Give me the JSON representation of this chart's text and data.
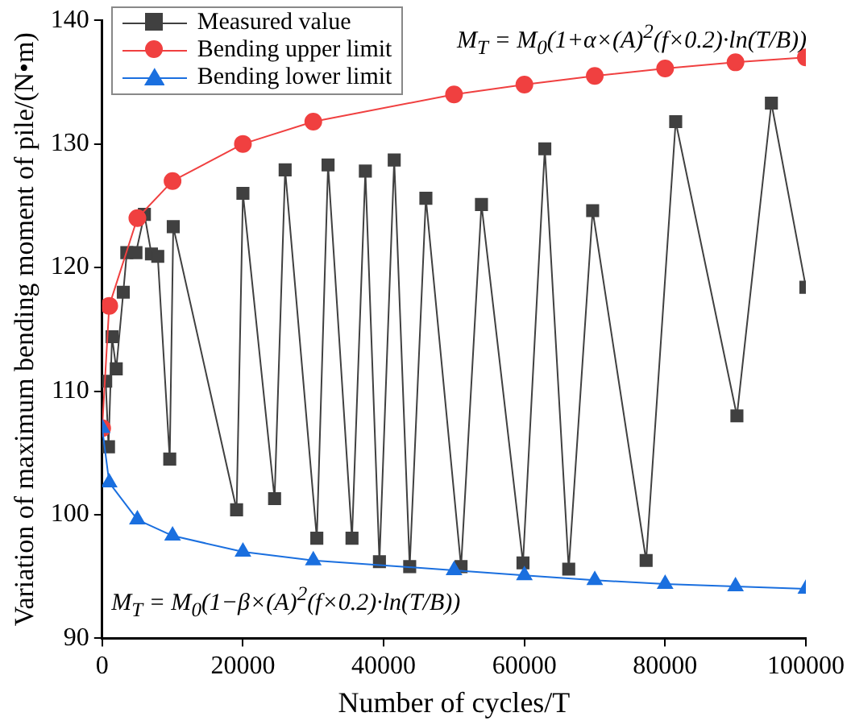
{
  "chart_data": {
    "type": "line",
    "xlabel": "Number of cycles/T",
    "ylabel": "Variation of maximum bending moment of pile/(N•m)",
    "xlim": [
      0,
      100000
    ],
    "xticks": [
      0,
      20000,
      40000,
      60000,
      80000,
      100000
    ],
    "ylim": [
      90,
      140
    ],
    "yticks": [
      90,
      100,
      110,
      120,
      130,
      140
    ],
    "grid": false,
    "legend": "top left",
    "line_style": "solid",
    "annotations": [
      "M$_{T}$ = M$_{0}$(1+α×(A)$^{2}$(f×0.2)·ln(T/B))",
      "M$_{T}$ = M$_{0}$(1−β×(A)$^{2}$(f×0.2)·ln(T/B))"
    ],
    "series": [
      {
        "name": "Measured value",
        "color": "#404040",
        "marker": "square",
        "x": [
          500,
          900,
          1400,
          2000,
          3000,
          3500,
          4800,
          6000,
          7000,
          7900,
          9600,
          10100,
          19100,
          20000,
          24500,
          26000,
          30500,
          32100,
          35500,
          37400,
          39400,
          41500,
          43700,
          46000,
          51000,
          53900,
          59800,
          62900,
          66300,
          69700,
          77300,
          81500,
          90200,
          95100,
          100000
        ],
        "values": [
          110.8,
          105.5,
          114.4,
          111.8,
          118,
          121.2,
          121.2,
          124.3,
          121.1,
          120.9,
          104.5,
          123.3,
          100.4,
          126,
          101.3,
          127.9,
          98.1,
          128.3,
          98.1,
          127.8,
          96.2,
          128.7,
          95.8,
          125.6,
          95.8,
          125.1,
          96.1,
          129.6,
          95.6,
          124.6,
          96.3,
          131.8,
          108,
          133.3,
          118.4
        ]
      },
      {
        "name": "Bending upper limit",
        "color": "#f04040",
        "marker": "circle",
        "x": [
          0,
          1000,
          5000,
          10000,
          20000,
          30000,
          50000,
          60000,
          70000,
          80000,
          90000,
          100000
        ],
        "values": [
          107,
          116.9,
          124,
          127,
          130,
          131.8,
          134,
          134.8,
          135.5,
          136.1,
          136.6,
          137
        ]
      },
      {
        "name": "Bending lower limit",
        "color": "#1a6fdf",
        "marker": "triangle",
        "x": [
          0,
          1000,
          5000,
          10000,
          20000,
          30000,
          50000,
          60000,
          70000,
          80000,
          90000,
          100000
        ],
        "values": [
          107,
          102.6,
          99.6,
          98.3,
          97,
          96.3,
          95.5,
          95.1,
          94.7,
          94.4,
          94.2,
          94
        ]
      }
    ]
  }
}
